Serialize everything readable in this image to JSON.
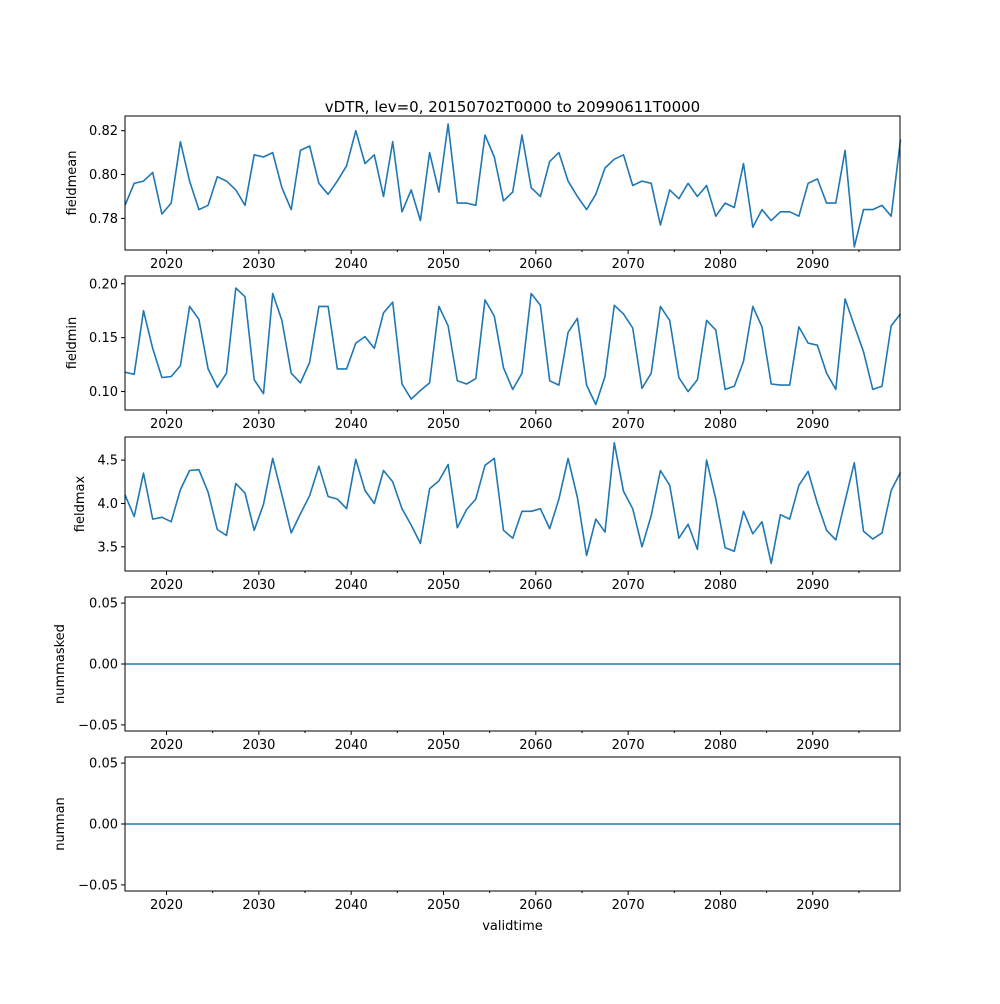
{
  "chart_data": {
    "type": "line",
    "title": "vDTR, lev=0, 20150702T0000 to 20990611T0000",
    "xlabel": "validtime",
    "xlim": [
      2015.5,
      2099.45
    ],
    "x_start": 2015.5,
    "x_step": 1,
    "x_ticks": [
      2020,
      2030,
      2040,
      2050,
      2060,
      2070,
      2080,
      2090
    ],
    "x_tick_labels": [
      "2020",
      "2030",
      "2040",
      "2050",
      "2060",
      "2070",
      "2080",
      "2090"
    ],
    "x_minor_ticks": [
      2025,
      2035,
      2045,
      2055,
      2065,
      2075,
      2085,
      2095
    ],
    "line_color": "#1f77b4",
    "panels": [
      {
        "ylabel": "fieldmean",
        "ylim": [
          0.7656,
          0.8267
        ],
        "yticks": [
          0.78,
          0.8,
          0.82
        ],
        "ytick_labels": [
          "0.78",
          "0.80",
          "0.82"
        ],
        "values": [
          0.786,
          0.796,
          0.797,
          0.801,
          0.782,
          0.787,
          0.815,
          0.797,
          0.784,
          0.786,
          0.799,
          0.797,
          0.793,
          0.786,
          0.809,
          0.808,
          0.81,
          0.794,
          0.784,
          0.811,
          0.813,
          0.796,
          0.791,
          0.797,
          0.804,
          0.82,
          0.805,
          0.809,
          0.79,
          0.815,
          0.783,
          0.793,
          0.779,
          0.81,
          0.792,
          0.823,
          0.787,
          0.787,
          0.786,
          0.818,
          0.808,
          0.788,
          0.792,
          0.818,
          0.794,
          0.79,
          0.806,
          0.81,
          0.797,
          0.79,
          0.784,
          0.791,
          0.803,
          0.807,
          0.809,
          0.795,
          0.797,
          0.796,
          0.777,
          0.793,
          0.789,
          0.796,
          0.79,
          0.795,
          0.781,
          0.787,
          0.785,
          0.805,
          0.776,
          0.784,
          0.779,
          0.783,
          0.783,
          0.781,
          0.796,
          0.798,
          0.787,
          0.787,
          0.811,
          0.767,
          0.784,
          0.784,
          0.786,
          0.781,
          0.816
        ]
      },
      {
        "ylabel": "fieldmin",
        "ylim": [
          0.0829,
          0.2072
        ],
        "yticks": [
          0.1,
          0.15,
          0.2
        ],
        "ytick_labels": [
          "0.10",
          "0.15",
          "0.20"
        ],
        "values": [
          0.118,
          0.116,
          0.175,
          0.14,
          0.113,
          0.114,
          0.124,
          0.179,
          0.167,
          0.121,
          0.104,
          0.117,
          0.196,
          0.188,
          0.111,
          0.098,
          0.191,
          0.166,
          0.117,
          0.108,
          0.127,
          0.179,
          0.179,
          0.121,
          0.121,
          0.145,
          0.151,
          0.14,
          0.173,
          0.183,
          0.107,
          0.093,
          0.101,
          0.108,
          0.179,
          0.161,
          0.11,
          0.107,
          0.112,
          0.185,
          0.17,
          0.122,
          0.102,
          0.117,
          0.191,
          0.18,
          0.11,
          0.106,
          0.155,
          0.168,
          0.106,
          0.088,
          0.114,
          0.18,
          0.172,
          0.159,
          0.103,
          0.117,
          0.179,
          0.166,
          0.113,
          0.1,
          0.111,
          0.166,
          0.157,
          0.102,
          0.105,
          0.128,
          0.179,
          0.16,
          0.107,
          0.106,
          0.106,
          0.16,
          0.145,
          0.143,
          0.117,
          0.102,
          0.186,
          0.161,
          0.137,
          0.102,
          0.105,
          0.161,
          0.172
        ]
      },
      {
        "ylabel": "fieldmax",
        "ylim": [
          3.221,
          4.767
        ],
        "yticks": [
          3.5,
          4.0,
          4.5
        ],
        "ytick_labels": [
          "3.5",
          "4.0",
          "4.5"
        ],
        "values": [
          4.1,
          3.85,
          4.35,
          3.82,
          3.84,
          3.79,
          4.16,
          4.38,
          4.39,
          4.13,
          3.7,
          3.63,
          4.23,
          4.12,
          3.69,
          3.99,
          4.52,
          4.1,
          3.66,
          3.88,
          4.09,
          4.43,
          4.08,
          4.05,
          3.94,
          4.51,
          4.15,
          4.0,
          4.38,
          4.25,
          3.94,
          3.75,
          3.54,
          4.17,
          4.26,
          4.45,
          3.72,
          3.93,
          4.05,
          4.44,
          4.52,
          3.69,
          3.6,
          3.91,
          3.91,
          3.94,
          3.71,
          4.05,
          4.52,
          4.07,
          3.4,
          3.82,
          3.67,
          4.7,
          4.14,
          3.94,
          3.5,
          3.86,
          4.38,
          4.21,
          3.6,
          3.76,
          3.47,
          4.5,
          4.05,
          3.49,
          3.45,
          3.91,
          3.65,
          3.79,
          3.31,
          3.87,
          3.82,
          4.21,
          4.37,
          4.0,
          3.69,
          3.58,
          4.03,
          4.47,
          3.68,
          3.59,
          3.66,
          4.15,
          4.36
        ]
      },
      {
        "ylabel": "nummasked",
        "ylim": [
          -0.055,
          0.055
        ],
        "yticks": [
          -0.05,
          0.0,
          0.05
        ],
        "ytick_labels": [
          "−0.05",
          "0.00",
          "0.05"
        ],
        "constant_value": 0
      },
      {
        "ylabel": "numnan",
        "ylim": [
          -0.055,
          0.055
        ],
        "yticks": [
          -0.05,
          0.0,
          0.05
        ],
        "ytick_labels": [
          "−0.05",
          "0.00",
          "0.05"
        ],
        "constant_value": 0
      }
    ]
  }
}
